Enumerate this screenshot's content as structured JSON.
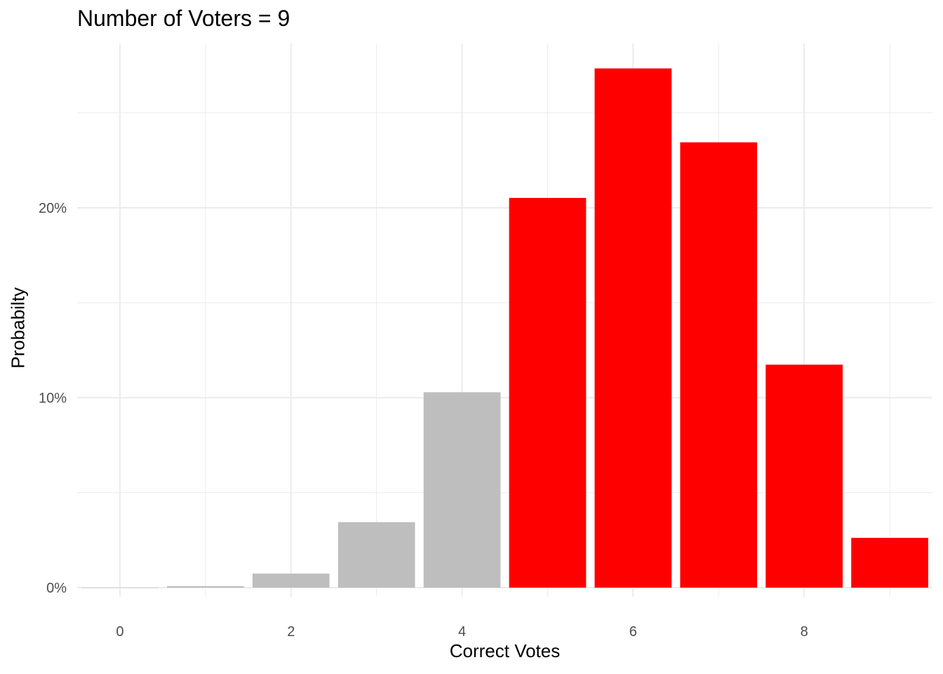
{
  "chart_data": {
    "type": "bar",
    "title": "Number of Voters = 9",
    "xlabel": "Correct Votes",
    "ylabel": "Probabilty",
    "categories": [
      0,
      1,
      2,
      3,
      4,
      5,
      6,
      7,
      8,
      9
    ],
    "values": [
      3e-05,
      0.0008,
      0.0074,
      0.0345,
      0.1029,
      0.2052,
      0.2734,
      0.2345,
      0.1174,
      0.0262
    ],
    "bar_colors": [
      "#BEBEBE",
      "#BEBEBE",
      "#BEBEBE",
      "#BEBEBE",
      "#BEBEBE",
      "#FF0000",
      "#FF0000",
      "#FF0000",
      "#FF0000",
      "#FF0000"
    ],
    "xlim": [
      -0.5,
      9.5
    ],
    "ylim": [
      0,
      0.29
    ],
    "x_ticks": [
      0,
      2,
      4,
      6,
      8
    ],
    "y_ticks": [
      0,
      0.1,
      0.2
    ],
    "y_tick_labels": [
      "0%",
      "10%",
      "20%"
    ],
    "grid": true,
    "legend": "none"
  }
}
